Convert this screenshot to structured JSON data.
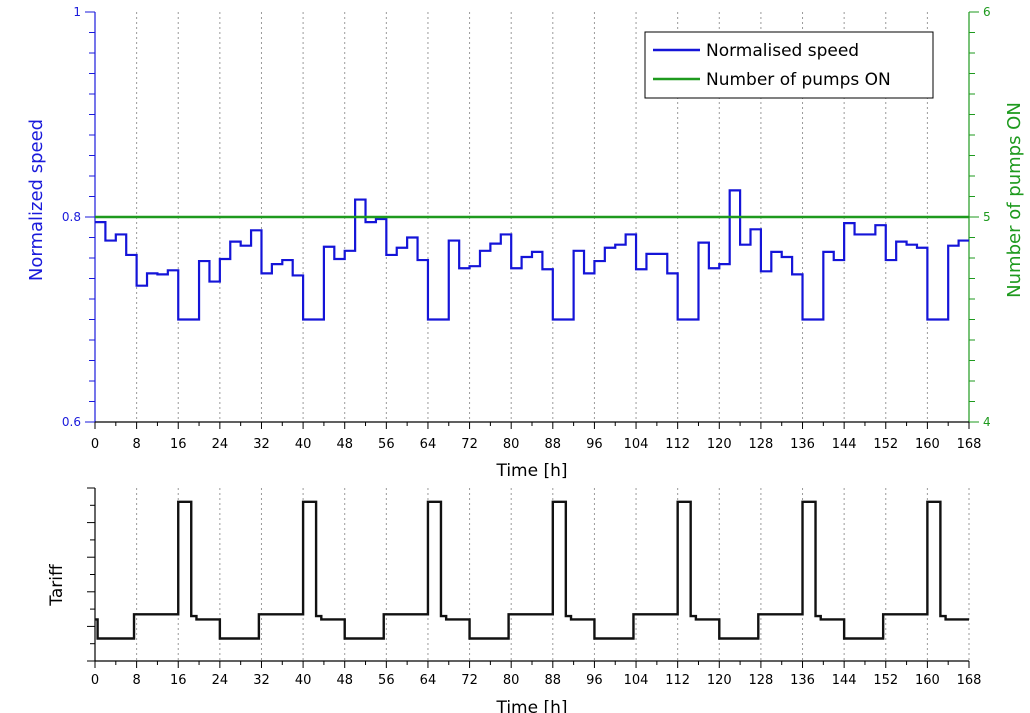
{
  "chart_data": [
    {
      "type": "line",
      "step": true,
      "xlabel": "Time [h]",
      "ylabel": "Normalized speed",
      "y2label": "Number of pumps ON",
      "xlim": [
        0,
        168
      ],
      "ylim": [
        0.6,
        1
      ],
      "y2lim": [
        4,
        6
      ],
      "xticks": [
        0,
        8,
        16,
        24,
        32,
        40,
        48,
        56,
        64,
        72,
        80,
        88,
        96,
        104,
        112,
        120,
        128,
        136,
        144,
        152,
        160,
        168
      ],
      "yticks": [
        0.6,
        0.8,
        1
      ],
      "yticklabels": [
        "0.6",
        "0.8",
        "1"
      ],
      "y2ticks": [
        4,
        5,
        6
      ],
      "y2ticklabels": [
        "4",
        "5",
        "6"
      ],
      "grid": "vertical dotted",
      "legend_position": "top-right",
      "colors": {
        "left_axis": "#1a1adb",
        "right_axis": "#1e9a1e"
      },
      "series": [
        {
          "name": "Normalised speed",
          "color": "#1414d8",
          "axis": "left",
          "x": [
            0,
            2,
            4,
            6,
            8,
            10,
            12,
            14,
            16,
            18,
            20,
            22,
            24,
            26,
            28,
            30,
            32,
            34,
            36,
            38,
            40,
            42,
            44,
            46,
            48,
            50,
            52,
            54,
            56,
            58,
            60,
            62,
            64,
            66,
            68,
            70,
            72,
            74,
            76,
            78,
            80,
            82,
            84,
            86,
            88,
            90,
            92,
            94,
            96,
            98,
            100,
            102,
            104,
            106,
            108,
            110,
            112,
            114,
            116,
            118,
            120,
            122,
            124,
            126,
            128,
            130,
            132,
            134,
            136,
            138,
            140,
            142,
            144,
            146,
            148,
            150,
            152,
            154,
            156,
            158,
            160,
            162,
            164,
            166,
            168
          ],
          "values": [
            0.795,
            0.777,
            0.783,
            0.763,
            0.733,
            0.745,
            0.744,
            0.748,
            0.7,
            0.7,
            0.757,
            0.737,
            0.759,
            0.776,
            0.772,
            0.787,
            0.745,
            0.754,
            0.758,
            0.743,
            0.7,
            0.7,
            0.771,
            0.759,
            0.767,
            0.817,
            0.795,
            0.798,
            0.763,
            0.77,
            0.78,
            0.758,
            0.7,
            0.7,
            0.777,
            0.75,
            0.752,
            0.767,
            0.774,
            0.783,
            0.75,
            0.761,
            0.766,
            0.749,
            0.7,
            0.7,
            0.767,
            0.745,
            0.757,
            0.77,
            0.773,
            0.783,
            0.749,
            0.764,
            0.764,
            0.745,
            0.7,
            0.7,
            0.775,
            0.75,
            0.754,
            0.826,
            0.773,
            0.788,
            0.747,
            0.766,
            0.761,
            0.744,
            0.7,
            0.7,
            0.766,
            0.758,
            0.794,
            0.783,
            0.783,
            0.792,
            0.758,
            0.776,
            0.773,
            0.77,
            0.7,
            0.7,
            0.772,
            0.777,
            0.777
          ]
        },
        {
          "name": "Number of pumps ON",
          "color": "#1e9a1e",
          "axis": "right",
          "x": [
            0,
            168
          ],
          "values": [
            5,
            5
          ]
        }
      ]
    },
    {
      "type": "line",
      "step": true,
      "xlabel": "Time [h]",
      "ylabel": "Tariff",
      "xlim": [
        0,
        168
      ],
      "ylim": [
        0,
        10
      ],
      "xticks": [
        0,
        8,
        16,
        24,
        32,
        40,
        48,
        56,
        64,
        72,
        80,
        88,
        96,
        104,
        112,
        120,
        128,
        136,
        144,
        152,
        160,
        168
      ],
      "yticks": [
        0,
        1,
        2,
        3,
        4,
        5,
        6,
        7,
        8,
        9,
        10
      ],
      "grid": "vertical dotted",
      "series": [
        {
          "color": "#111111",
          "x": [
            0,
            0.5,
            7.5,
            16,
            18.5,
            19.5,
            24,
            31.5,
            40,
            42.5,
            43.5,
            48,
            55.5,
            64,
            66.5,
            67.5,
            72,
            79.5,
            88,
            90.5,
            91.5,
            96,
            103.5,
            112,
            114.5,
            115.5,
            120,
            127.5,
            136,
            138.5,
            139.5,
            144,
            151.5,
            160,
            162.5,
            163.5,
            168
          ],
          "values": [
            2.4,
            1.3,
            2.7,
            9.2,
            2.6,
            2.4,
            1.3,
            2.7,
            9.2,
            2.6,
            2.4,
            1.3,
            2.7,
            9.2,
            2.6,
            2.4,
            1.3,
            2.7,
            9.2,
            2.6,
            2.4,
            1.3,
            2.7,
            9.2,
            2.6,
            2.4,
            1.3,
            2.7,
            9.2,
            2.6,
            2.4,
            1.3,
            2.7,
            9.2,
            2.6,
            2.4,
            2.4
          ]
        }
      ]
    }
  ]
}
